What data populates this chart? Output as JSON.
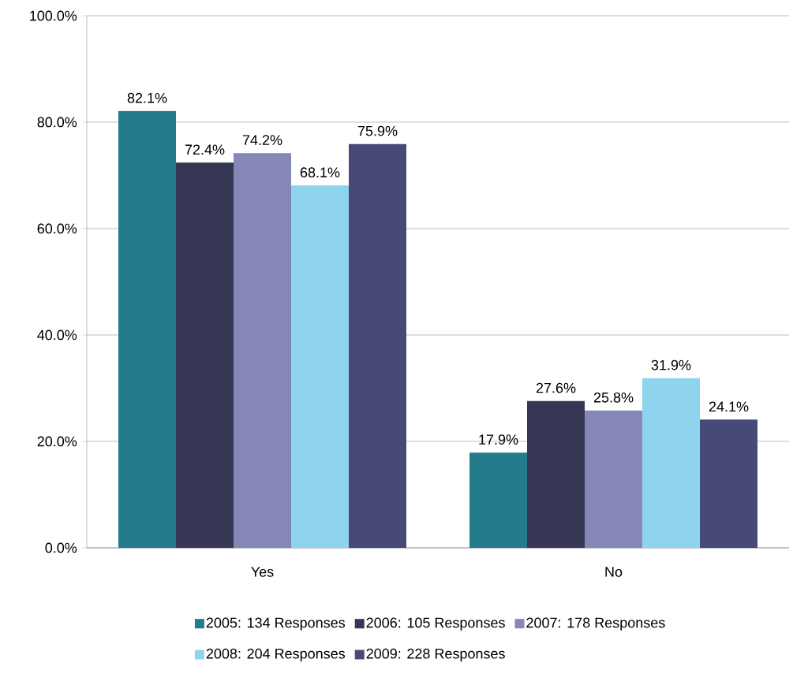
{
  "chart_data": {
    "type": "bar",
    "categories": [
      "Yes",
      "No"
    ],
    "series": [
      {
        "name": "2005: 134 Responses",
        "color": "#237b8c",
        "values": [
          82.1,
          17.9
        ],
        "value_labels": [
          "82.1%",
          "17.9%"
        ]
      },
      {
        "name": "2006: 105 Responses",
        "color": "#353755",
        "values": [
          72.4,
          27.6
        ],
        "value_labels": [
          "72.4%",
          "27.6%"
        ]
      },
      {
        "name": "2007: 178 Responses",
        "color": "#8587b6",
        "values": [
          74.2,
          25.8
        ],
        "value_labels": [
          "74.2%",
          "25.8%"
        ]
      },
      {
        "name": "2008: 204 Responses",
        "color": "#8fd4ef",
        "values": [
          68.1,
          31.9
        ],
        "value_labels": [
          "68.1%",
          "31.9%"
        ]
      },
      {
        "name": "2009: 228 Responses",
        "color": "#474a77",
        "values": [
          75.9,
          24.1
        ],
        "value_labels": [
          "75.9%",
          "24.1%"
        ]
      }
    ],
    "ylim": [
      0,
      100
    ],
    "yticks": [
      {
        "value": 0,
        "label": "0.0%"
      },
      {
        "value": 20,
        "label": "20.0%"
      },
      {
        "value": 40,
        "label": "40.0%"
      },
      {
        "value": 60,
        "label": "60.0%"
      },
      {
        "value": 80,
        "label": "80.0%"
      },
      {
        "value": 100,
        "label": "100.0%"
      }
    ],
    "grid": "y",
    "legend": "bottom"
  }
}
